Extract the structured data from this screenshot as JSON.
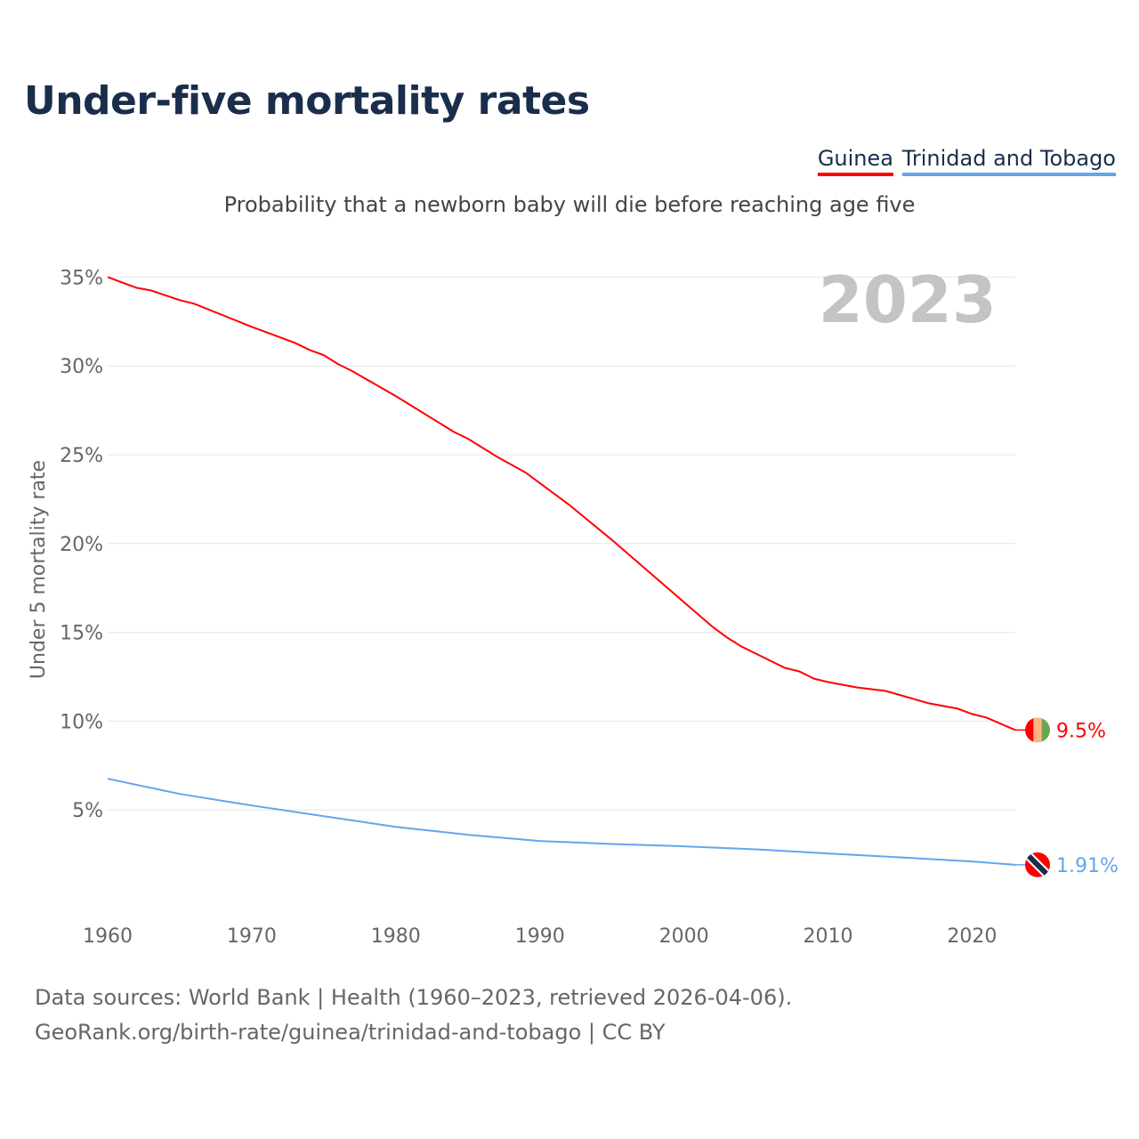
{
  "title": "Under-five mortality rates",
  "subtitle": "Probability that a newborn baby will die before reaching age five",
  "footer": {
    "line1": "Data sources: World Bank | Health (1960–2023, retrieved 2026-04-06).",
    "line2": "GeoRank.org/birth-rate/guinea/trinidad-and-tobago | CC BY"
  },
  "chart_data": {
    "type": "line",
    "title": "Under-five mortality rates",
    "year_label": "2023",
    "ylabel": "Under 5 mortality rate",
    "xlabel": "",
    "xlim": [
      1960,
      2023
    ],
    "ylim": [
      0,
      35
    ],
    "xticks": [
      1960,
      1970,
      1980,
      1990,
      2000,
      2010,
      2020
    ],
    "yticks": [
      {
        "v": 5,
        "label": "5%"
      },
      {
        "v": 10,
        "label": "10%"
      },
      {
        "v": 15,
        "label": "15%"
      },
      {
        "v": 20,
        "label": "20%"
      },
      {
        "v": 25,
        "label": "25%"
      },
      {
        "v": 30,
        "label": "30%"
      },
      {
        "v": 35,
        "label": "35%"
      }
    ],
    "grid": true,
    "legend": "top-right",
    "series": [
      {
        "name": "Guinea",
        "color": "#ff0000",
        "end_label": "9.5%",
        "flag": [
          "#ff0000",
          "#ffb482",
          "#6aa84f"
        ],
        "x": [
          1960,
          1962,
          1963,
          1965,
          1966,
          1970,
          1973,
          1974,
          1975,
          1976,
          1977,
          1980,
          1984,
          1985,
          1987,
          1989,
          1990,
          1992,
          1995,
          2000,
          2001,
          2002,
          2003,
          2004,
          2005,
          2007,
          2008,
          2009,
          2010,
          2012,
          2014,
          2017,
          2019,
          2020,
          2021,
          2023
        ],
        "y": [
          35.0,
          34.4,
          34.25,
          33.7,
          33.5,
          32.2,
          31.3,
          30.9,
          30.6,
          30.1,
          29.7,
          28.3,
          26.3,
          25.9,
          24.9,
          24.0,
          23.4,
          22.2,
          20.2,
          16.7,
          16.0,
          15.3,
          14.7,
          14.2,
          13.8,
          13.0,
          12.8,
          12.4,
          12.2,
          11.9,
          11.7,
          11.0,
          10.7,
          10.4,
          10.2,
          9.5
        ]
      },
      {
        "name": "Trinidad and Tobago",
        "color": "#64a5ec",
        "end_label": "1.91%",
        "x": [
          1960,
          1965,
          1970,
          1975,
          1980,
          1985,
          1990,
          1995,
          2000,
          2005,
          2010,
          2015,
          2020,
          2023
        ],
        "y": [
          6.76,
          5.9,
          5.25,
          4.65,
          4.05,
          3.6,
          3.25,
          3.08,
          2.95,
          2.78,
          2.55,
          2.33,
          2.1,
          1.91
        ]
      }
    ]
  }
}
